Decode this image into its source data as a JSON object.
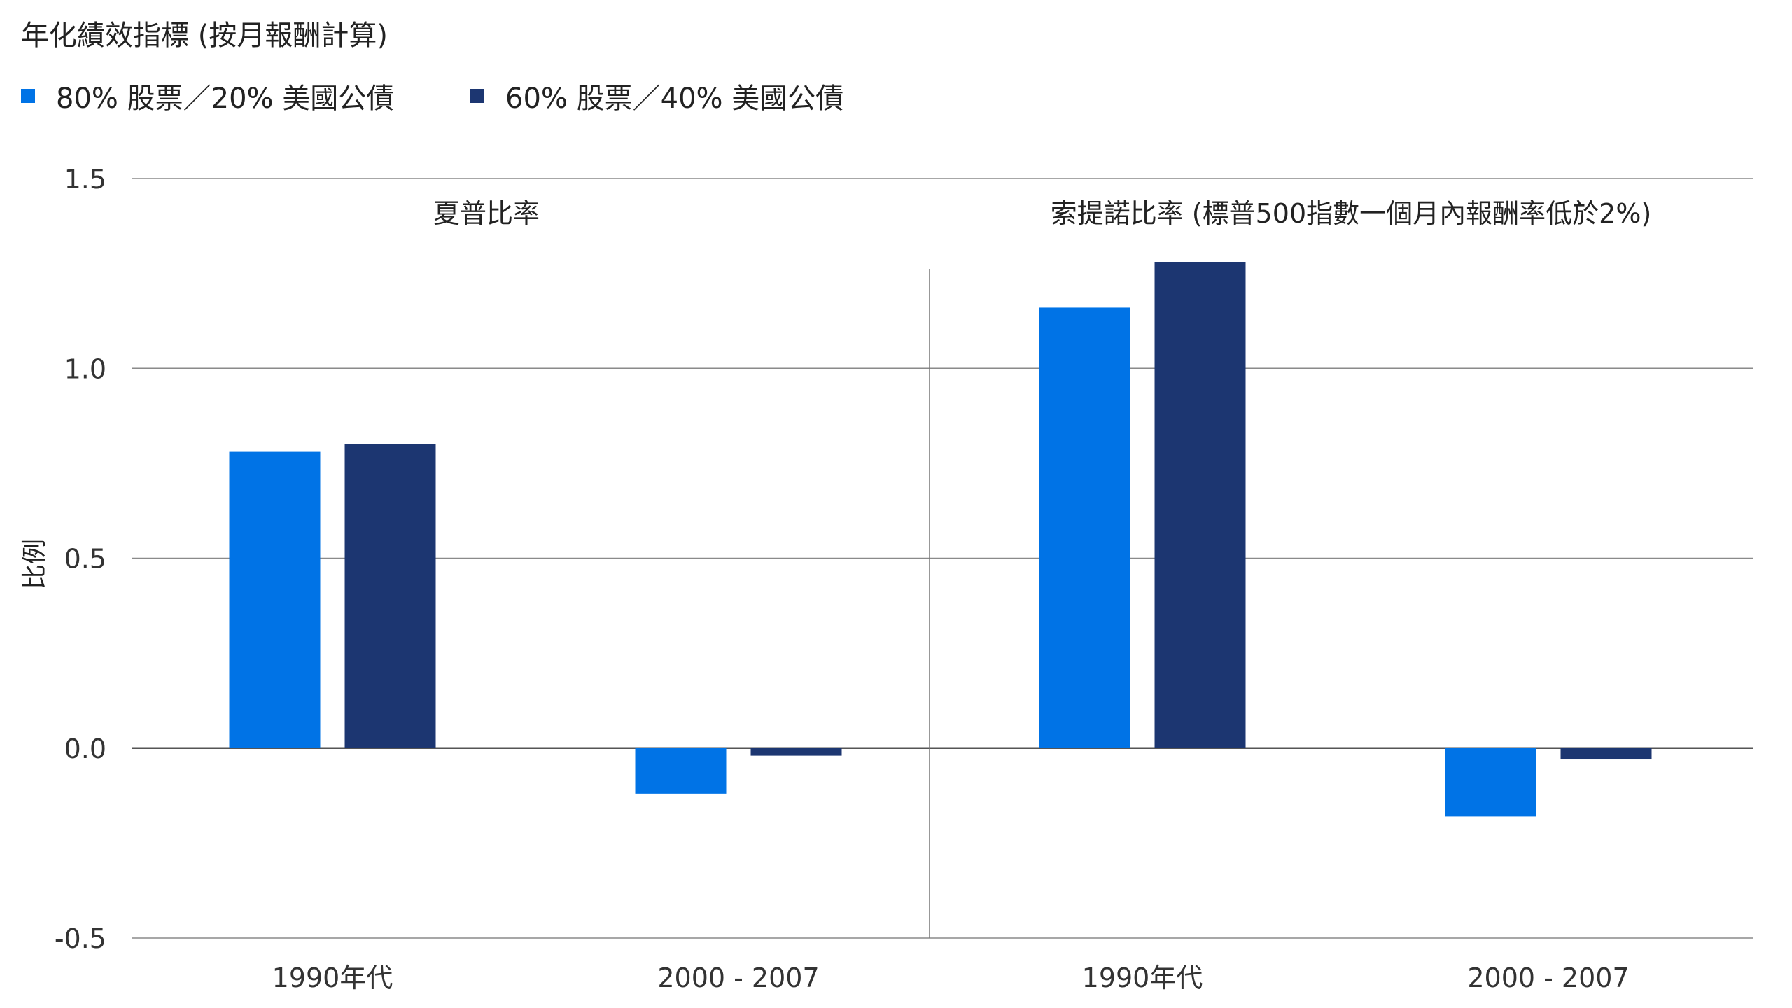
{
  "chart_data": {
    "type": "bar",
    "title": "年化績效指標 (按月報酬計算)",
    "ylabel": "比例",
    "ylim": [
      -0.5,
      1.5
    ],
    "yticks": [
      "1.5",
      "1.0",
      "0.5",
      "0.0",
      "-0.5"
    ],
    "ytick_values": [
      1.5,
      1.0,
      0.5,
      0.0,
      -0.5
    ],
    "grid": true,
    "legend_placement": "top-left",
    "series": [
      {
        "name": "80% 股票／20% 美國公債",
        "color": "#0073E6"
      },
      {
        "name": "60% 股票／40% 美國公債",
        "color": "#1C3671"
      }
    ],
    "panels": [
      {
        "label": "夏普比率",
        "categories": [
          "1990年代",
          "2000 - 2007"
        ],
        "values": [
          [
            0.78,
            -0.12
          ],
          [
            0.8,
            -0.02
          ]
        ]
      },
      {
        "label": "索提諾比率 (標普500指數一個月內報酬率低於2%)",
        "categories": [
          "1990年代",
          "2000 - 2007"
        ],
        "values": [
          [
            1.16,
            -0.18
          ],
          [
            1.28,
            -0.03
          ]
        ]
      }
    ]
  }
}
